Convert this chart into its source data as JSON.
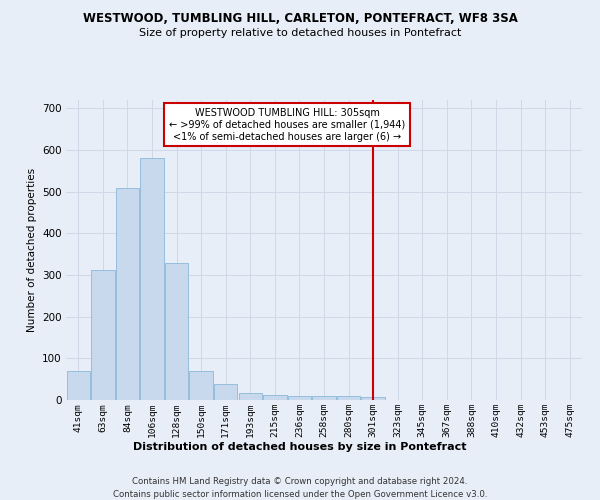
{
  "title": "WESTWOOD, TUMBLING HILL, CARLETON, PONTEFRACT, WF8 3SA",
  "subtitle": "Size of property relative to detached houses in Pontefract",
  "xlabel": "Distribution of detached houses by size in Pontefract",
  "ylabel": "Number of detached properties",
  "footer_line1": "Contains HM Land Registry data © Crown copyright and database right 2024.",
  "footer_line2": "Contains public sector information licensed under the Open Government Licence v3.0.",
  "bar_color": "#c8d9ee",
  "bar_edge_color": "#7bafd4",
  "grid_color": "#d0d8e8",
  "background_color": "#e8eef7",
  "annotation_text": "WESTWOOD TUMBLING HILL: 305sqm\n← >99% of detached houses are smaller (1,944)\n<1% of semi-detached houses are larger (6) →",
  "annotation_box_color": "#cc0000",
  "vline_x": 12,
  "vline_color": "#cc0000",
  "ylim": [
    0,
    720
  ],
  "yticks": [
    0,
    100,
    200,
    300,
    400,
    500,
    600,
    700
  ],
  "categories": [
    "41sqm",
    "63sqm",
    "84sqm",
    "106sqm",
    "128sqm",
    "150sqm",
    "171sqm",
    "193sqm",
    "215sqm",
    "236sqm",
    "258sqm",
    "280sqm",
    "301sqm",
    "323sqm",
    "345sqm",
    "367sqm",
    "388sqm",
    "410sqm",
    "432sqm",
    "453sqm",
    "475sqm"
  ],
  "values": [
    70,
    313,
    510,
    580,
    330,
    70,
    38,
    17,
    12,
    10,
    10,
    10,
    7,
    0,
    0,
    0,
    0,
    0,
    0,
    0,
    0
  ],
  "n_bars": 21
}
